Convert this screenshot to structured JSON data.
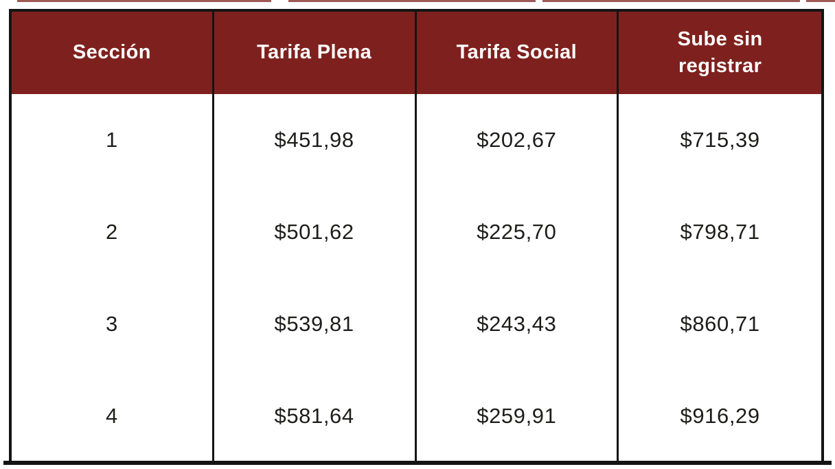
{
  "colors": {
    "header_bg": "#7E211E",
    "header_text": "#FFFFFF",
    "border": "#141414",
    "text": "#1D1D1B",
    "background": "#FFFFFF"
  },
  "chart_data": {
    "type": "table",
    "title": "",
    "columns": [
      "Sección",
      "Tarifa Plena",
      "Tarifa Social",
      "Sube sin registrar"
    ],
    "rows": [
      [
        "1",
        "$451,98",
        "$202,67",
        "$715,39"
      ],
      [
        "2",
        "$501,62",
        "$225,70",
        "$798,71"
      ],
      [
        "3",
        "$539,81",
        "$243,43",
        "$860,71"
      ],
      [
        "4",
        "$581,64",
        "$259,91",
        "$916,29"
      ]
    ],
    "numeric_values": {
      "seccion": [
        1,
        2,
        3,
        4
      ],
      "tarifa_plena": [
        451.98,
        501.62,
        539.81,
        581.64
      ],
      "tarifa_social": [
        202.67,
        225.7,
        243.43,
        259.91
      ],
      "sube_sin_registrar": [
        715.39,
        798.71,
        860.71,
        916.29
      ]
    },
    "currency": "$",
    "decimal_separator": ",",
    "layout": {
      "header_background": "#7E211E",
      "grid": "vertical-dividers-only",
      "outer_border": true
    }
  }
}
